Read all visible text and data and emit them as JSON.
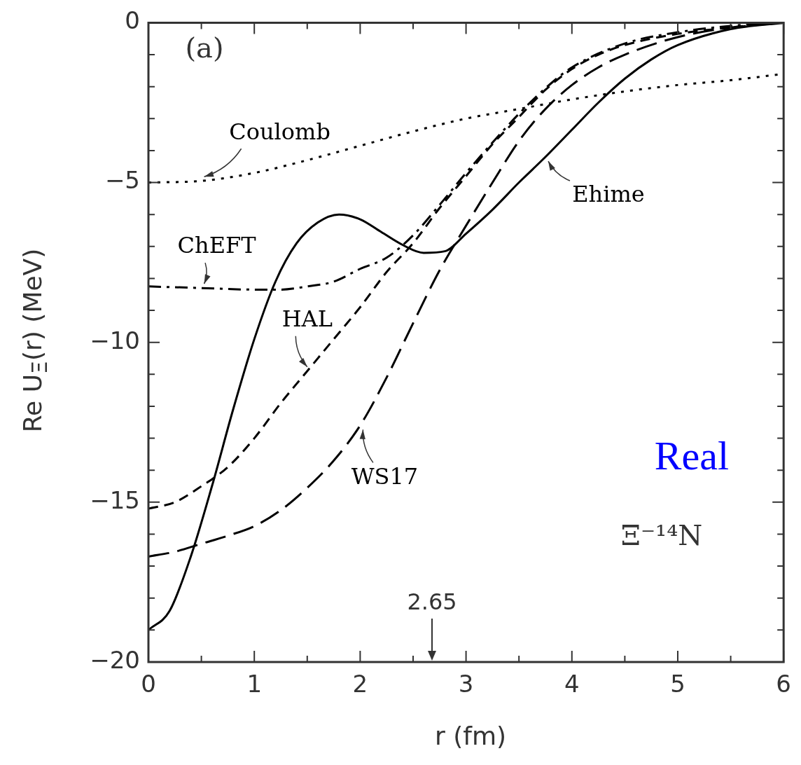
{
  "chart_data": {
    "type": "line",
    "xlabel": "r  (fm)",
    "ylabel": "Re U$_{Ξ}$(r)  (MeV)",
    "xlim": [
      0,
      6
    ],
    "ylim": [
      -20,
      0
    ],
    "xticks": [
      0,
      {
        "value": 0.5,
        "label": null
      },
      1,
      {
        "value": 1.5,
        "label": null
      },
      2,
      {
        "value": 2.5,
        "label": null
      },
      3,
      {
        "value": 3.5,
        "label": null
      },
      4,
      {
        "value": 4.5,
        "label": null
      },
      5,
      {
        "value": 5.5,
        "label": null
      },
      6
    ],
    "yticks": [
      {
        "value": -20,
        "label": "−20"
      },
      {
        "value": -19,
        "label": null
      },
      {
        "value": -18,
        "label": null
      },
      {
        "value": -17,
        "label": null
      },
      {
        "value": -16,
        "label": null
      },
      {
        "value": -15,
        "label": "−15"
      },
      {
        "value": -14,
        "label": null
      },
      {
        "value": -13,
        "label": null
      },
      {
        "value": -12,
        "label": null
      },
      {
        "value": -11,
        "label": null
      },
      {
        "value": -10,
        "label": "−10"
      },
      {
        "value": -9,
        "label": null
      },
      {
        "value": -8,
        "label": null
      },
      {
        "value": -7,
        "label": null
      },
      {
        "value": -6,
        "label": null
      },
      {
        "value": -5,
        "label": "−5"
      },
      {
        "value": -4,
        "label": null
      },
      {
        "value": -3,
        "label": null
      },
      {
        "value": -2,
        "label": null
      },
      {
        "value": -1,
        "label": null
      },
      {
        "value": 0,
        "label": "0"
      }
    ],
    "grid": false,
    "legend": false,
    "series": [
      {
        "name": "Coulomb",
        "color": "#000000",
        "line_style": "dotted",
        "x": [
          0,
          0.5,
          1,
          1.5,
          2,
          2.5,
          3,
          3.5,
          4,
          4.5,
          5,
          5.5,
          6
        ],
        "values": [
          -5.0,
          -4.95,
          -4.7,
          -4.3,
          -3.85,
          -3.4,
          -3.0,
          -2.7,
          -2.4,
          -2.15,
          -1.95,
          -1.8,
          -1.6
        ]
      },
      {
        "name": "ChEFT",
        "color": "#000000",
        "line_style": "dashdot",
        "x": [
          0,
          0.5,
          1,
          1.25,
          1.5,
          1.75,
          2,
          2.25,
          2.5,
          2.75,
          3,
          3.25,
          3.5,
          3.75,
          4,
          4.5,
          5,
          5.5,
          6
        ],
        "values": [
          -8.25,
          -8.3,
          -8.35,
          -8.35,
          -8.25,
          -8.1,
          -7.7,
          -7.35,
          -6.65,
          -5.7,
          -4.7,
          -3.75,
          -2.85,
          -2.05,
          -1.4,
          -0.65,
          -0.3,
          -0.1,
          0
        ]
      },
      {
        "name": "HAL",
        "color": "#000000",
        "line_style": "dashed",
        "x": [
          0,
          0.25,
          0.5,
          0.75,
          1,
          1.25,
          1.5,
          1.75,
          2,
          2.25,
          2.5,
          2.75,
          3,
          3.25,
          3.5,
          3.75,
          4,
          4.25,
          4.5,
          5,
          5.5,
          6
        ],
        "values": [
          -15.2,
          -15.0,
          -14.5,
          -13.9,
          -13.0,
          -11.9,
          -10.9,
          -9.9,
          -8.9,
          -7.8,
          -6.9,
          -5.8,
          -4.8,
          -3.8,
          -2.95,
          -2.1,
          -1.45,
          -1.0,
          -0.7,
          -0.35,
          -0.15,
          0
        ]
      },
      {
        "name": "Ehime",
        "color": "#000000",
        "line_style": "solid",
        "x": [
          0,
          0.2,
          0.4,
          0.6,
          0.8,
          1,
          1.2,
          1.4,
          1.6,
          1.8,
          2,
          2.2,
          2.4,
          2.6,
          2.8,
          3,
          3.25,
          3.5,
          3.75,
          4,
          4.25,
          4.5,
          4.75,
          5,
          5.5,
          6
        ],
        "values": [
          -19.0,
          -18.4,
          -16.7,
          -14.5,
          -12.1,
          -9.9,
          -8.1,
          -6.9,
          -6.25,
          -6.0,
          -6.15,
          -6.55,
          -6.95,
          -7.2,
          -7.15,
          -6.6,
          -5.85,
          -5.0,
          -4.2,
          -3.35,
          -2.5,
          -1.75,
          -1.15,
          -0.7,
          -0.2,
          0
        ]
      },
      {
        "name": "WS17",
        "color": "#000000",
        "line_style": "longdash",
        "x": [
          0,
          0.25,
          0.5,
          0.75,
          1,
          1.25,
          1.5,
          1.75,
          2,
          2.25,
          2.5,
          2.75,
          3,
          3.25,
          3.5,
          3.75,
          4,
          4.25,
          4.5,
          5,
          5.5,
          6
        ],
        "values": [
          -16.7,
          -16.55,
          -16.3,
          -16.05,
          -15.75,
          -15.25,
          -14.55,
          -13.7,
          -12.6,
          -11.1,
          -9.4,
          -7.75,
          -6.35,
          -5.0,
          -3.7,
          -2.7,
          -1.95,
          -1.4,
          -1.0,
          -0.45,
          -0.15,
          0
        ]
      }
    ],
    "annotations": [
      "(a)",
      "Real",
      "Ξ⁻¹⁴N",
      "2.65"
    ]
  }
}
